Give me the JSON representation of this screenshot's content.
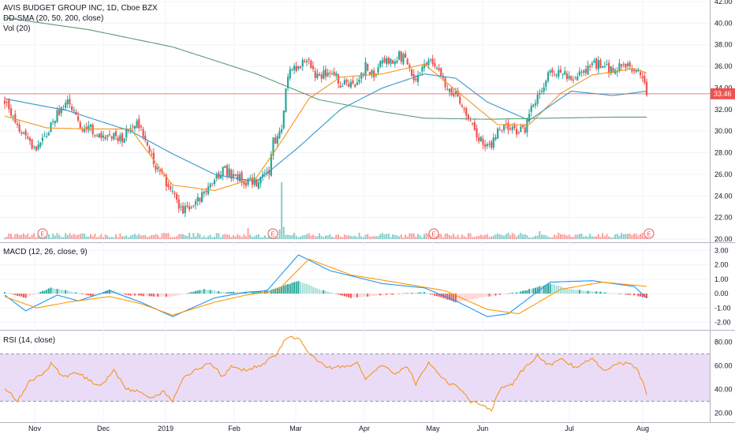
{
  "header": {
    "title": "AVIS BUDGET GROUP INC, 1D, Cboe BZX",
    "sma_label": "DD-SMA (20, 50, 200, close)",
    "vol_label": "Vol (20)",
    "macd_label": "MACD (12, 26, close, 9)",
    "rsi_label": "RSI (14, close)",
    "last_price": "33.46"
  },
  "colors": {
    "up": "#26a69a",
    "down": "#ef5350",
    "sma20": "#f7931e",
    "sma50": "#3399cc",
    "sma200": "#5b9a7a",
    "macd": "#2196f3",
    "signal": "#ff9800",
    "rsi": "#f7931e",
    "rsi_band": "#eadcf7",
    "price_line": "#ef5350"
  },
  "chart_data": [
    {
      "type": "candlestick",
      "title": "AVIS BUDGET GROUP INC, 1D, Cboe BZX",
      "x_ticks": [
        "Nov",
        "Dec",
        "2019",
        "Feb",
        "Mar",
        "Apr",
        "May",
        "Jun",
        "Jul",
        "Aug"
      ],
      "y_ticks": [
        "20.00",
        "22.00",
        "24.00",
        "26.00",
        "28.00",
        "30.00",
        "32.00",
        "34.00",
        "36.00",
        "38.00",
        "40.00",
        "42.00"
      ],
      "ylim": [
        20,
        42
      ],
      "last_price": 33.46,
      "earnings_markers": [
        "E",
        "E",
        "E",
        "E"
      ],
      "closes": [
        [
          0,
          32.6
        ],
        [
          5,
          31.0
        ],
        [
          10,
          29.3
        ],
        [
          15,
          28.2
        ],
        [
          20,
          29.6
        ],
        [
          25,
          31.6
        ],
        [
          30,
          32.6
        ],
        [
          33,
          32.0
        ],
        [
          36,
          30.4
        ],
        [
          40,
          30.5
        ],
        [
          44,
          29.5
        ],
        [
          48,
          29.2
        ],
        [
          52,
          29.8
        ],
        [
          56,
          29.0
        ],
        [
          60,
          30.6
        ],
        [
          64,
          30.7
        ],
        [
          68,
          28.8
        ],
        [
          72,
          26.8
        ],
        [
          76,
          25.6
        ],
        [
          80,
          24.2
        ],
        [
          84,
          22.6
        ],
        [
          88,
          22.7
        ],
        [
          92,
          23.6
        ],
        [
          96,
          24.5
        ],
        [
          100,
          25.4
        ],
        [
          104,
          26.5
        ],
        [
          108,
          26.0
        ],
        [
          112,
          25.8
        ],
        [
          116,
          25.2
        ],
        [
          120,
          25.3
        ],
        [
          124,
          26.0
        ],
        [
          126,
          26.3
        ],
        [
          128,
          29.0
        ],
        [
          132,
          29.8
        ],
        [
          134,
          34.0
        ],
        [
          136,
          35.8
        ],
        [
          140,
          36.0
        ],
        [
          144,
          36.7
        ],
        [
          148,
          35.0
        ],
        [
          152,
          35.3
        ],
        [
          156,
          35.7
        ],
        [
          160,
          34.4
        ],
        [
          164,
          34.3
        ],
        [
          168,
          34.6
        ],
        [
          172,
          36.0
        ],
        [
          176,
          35.2
        ],
        [
          180,
          36.3
        ],
        [
          184,
          36.5
        ],
        [
          188,
          37.0
        ],
        [
          192,
          36.5
        ],
        [
          196,
          34.3
        ],
        [
          200,
          36.6
        ],
        [
          204,
          36.3
        ],
        [
          208,
          34.9
        ],
        [
          212,
          33.6
        ],
        [
          216,
          33.1
        ],
        [
          220,
          31.7
        ],
        [
          224,
          30.0
        ],
        [
          228,
          29.0
        ],
        [
          232,
          28.8
        ],
        [
          236,
          30.2
        ],
        [
          240,
          30.3
        ],
        [
          244,
          30.0
        ],
        [
          248,
          30.3
        ],
        [
          252,
          32.4
        ],
        [
          256,
          34.0
        ],
        [
          260,
          35.4
        ],
        [
          264,
          35.3
        ],
        [
          268,
          35.2
        ],
        [
          272,
          35.0
        ],
        [
          276,
          35.3
        ],
        [
          280,
          36.3
        ],
        [
          284,
          36.2
        ],
        [
          288,
          35.8
        ],
        [
          292,
          35.8
        ],
        [
          296,
          36.2
        ],
        [
          300,
          35.6
        ],
        [
          304,
          35.0
        ],
        [
          306,
          33.46
        ]
      ],
      "series": [
        {
          "name": "SMA 20",
          "values": [
            [
              0,
              31.4
            ],
            [
              20,
              30.3
            ],
            [
              40,
              30.2
            ],
            [
              60,
              30.2
            ],
            [
              80,
              25.0
            ],
            [
              100,
              24.5
            ],
            [
              120,
              25.7
            ],
            [
              130,
              28.5
            ],
            [
              145,
              33.0
            ],
            [
              160,
              35.0
            ],
            [
              180,
              35.3
            ],
            [
              200,
              36.2
            ],
            [
              220,
              33.0
            ],
            [
              235,
              30.6
            ],
            [
              250,
              30.6
            ],
            [
              265,
              33.5
            ],
            [
              280,
              35.2
            ],
            [
              300,
              35.8
            ],
            [
              306,
              35.4
            ]
          ]
        },
        {
          "name": "SMA 50",
          "values": [
            [
              0,
              33.0
            ],
            [
              30,
              31.9
            ],
            [
              60,
              30.0
            ],
            [
              80,
              27.9
            ],
            [
              100,
              26.0
            ],
            [
              120,
              25.3
            ],
            [
              140,
              28.5
            ],
            [
              160,
              32.0
            ],
            [
              180,
              34.0
            ],
            [
              200,
              35.3
            ],
            [
              215,
              34.9
            ],
            [
              230,
              32.7
            ],
            [
              250,
              31.0
            ],
            [
              270,
              33.7
            ],
            [
              290,
              33.3
            ],
            [
              306,
              33.7
            ]
          ]
        },
        {
          "name": "SMA 200",
          "values": [
            [
              0,
              40.5
            ],
            [
              40,
              39.4
            ],
            [
              80,
              37.8
            ],
            [
              120,
              35.3
            ],
            [
              150,
              32.9
            ],
            [
              180,
              31.8
            ],
            [
              200,
              31.2
            ],
            [
              230,
              31.1
            ],
            [
              260,
              31.2
            ],
            [
              290,
              31.3
            ],
            [
              306,
              31.3
            ]
          ]
        }
      ]
    },
    {
      "type": "macd",
      "title": "MACD (12, 26, close, 9)",
      "y_ticks": [
        "3.00",
        "2.00",
        "1.00",
        "0.00",
        "-1.00",
        "-2.00"
      ],
      "ylim": [
        -2.3,
        3.3
      ],
      "series": [
        {
          "name": "MACD",
          "values": [
            [
              0,
              -0.1
            ],
            [
              10,
              -1.2
            ],
            [
              25,
              -0.1
            ],
            [
              35,
              -0.5
            ],
            [
              50,
              0.2
            ],
            [
              65,
              -0.6
            ],
            [
              80,
              -1.6
            ],
            [
              100,
              -0.3
            ],
            [
              115,
              0.1
            ],
            [
              125,
              0.2
            ],
            [
              140,
              2.7
            ],
            [
              155,
              1.6
            ],
            [
              180,
              0.7
            ],
            [
              200,
              0.4
            ],
            [
              215,
              -0.5
            ],
            [
              230,
              -1.6
            ],
            [
              240,
              -1.4
            ],
            [
              260,
              0.8
            ],
            [
              280,
              0.9
            ],
            [
              300,
              0.5
            ],
            [
              306,
              -0.3
            ]
          ]
        },
        {
          "name": "Signal",
          "values": [
            [
              0,
              -0.2
            ],
            [
              15,
              -1.0
            ],
            [
              30,
              -0.6
            ],
            [
              50,
              -0.2
            ],
            [
              65,
              -0.7
            ],
            [
              80,
              -1.5
            ],
            [
              100,
              -0.6
            ],
            [
              115,
              -0.1
            ],
            [
              130,
              0.2
            ],
            [
              145,
              2.4
            ],
            [
              165,
              1.3
            ],
            [
              190,
              0.7
            ],
            [
              210,
              0.2
            ],
            [
              230,
              -1.1
            ],
            [
              245,
              -1.4
            ],
            [
              265,
              0.3
            ],
            [
              285,
              0.8
            ],
            [
              306,
              0.5
            ]
          ]
        },
        {
          "name": "Histogram",
          "values": [
            [
              0,
              0.1
            ],
            [
              10,
              -0.3
            ],
            [
              22,
              0.4
            ],
            [
              30,
              0.2
            ],
            [
              42,
              -0.2
            ],
            [
              50,
              0.3
            ],
            [
              58,
              -0.1
            ],
            [
              70,
              -0.2
            ],
            [
              80,
              -0.2
            ],
            [
              95,
              0.3
            ],
            [
              105,
              0.1
            ],
            [
              118,
              0.1
            ],
            [
              128,
              0.3
            ],
            [
              140,
              0.9
            ],
            [
              150,
              0.3
            ],
            [
              165,
              -0.3
            ],
            [
              180,
              -0.1
            ],
            [
              200,
              0.1
            ],
            [
              215,
              -0.6
            ],
            [
              230,
              -0.2
            ],
            [
              245,
              0.1
            ],
            [
              260,
              0.7
            ],
            [
              270,
              0.3
            ],
            [
              285,
              0.1
            ],
            [
              300,
              -0.1
            ],
            [
              306,
              -0.3
            ]
          ]
        }
      ]
    },
    {
      "type": "rsi",
      "title": "RSI (14, close)",
      "y_ticks": [
        "80.00",
        "60.00",
        "40.00",
        "20.00"
      ],
      "ylim": [
        15,
        87
      ],
      "band": [
        30,
        70
      ],
      "series": [
        {
          "name": "RSI",
          "values": [
            [
              0,
              42
            ],
            [
              6,
              30
            ],
            [
              12,
              48
            ],
            [
              18,
              52
            ],
            [
              22,
              62
            ],
            [
              28,
              50
            ],
            [
              34,
              55
            ],
            [
              40,
              48
            ],
            [
              46,
              43
            ],
            [
              52,
              57
            ],
            [
              58,
              40
            ],
            [
              64,
              38
            ],
            [
              70,
              33
            ],
            [
              76,
              38
            ],
            [
              80,
              30
            ],
            [
              86,
              52
            ],
            [
              92,
              57
            ],
            [
              98,
              63
            ],
            [
              104,
              50
            ],
            [
              108,
              60
            ],
            [
              112,
              56
            ],
            [
              120,
              59
            ],
            [
              126,
              65
            ],
            [
              130,
              70
            ],
            [
              134,
              84
            ],
            [
              140,
              83
            ],
            [
              144,
              74
            ],
            [
              150,
              62
            ],
            [
              156,
              58
            ],
            [
              162,
              60
            ],
            [
              168,
              62
            ],
            [
              172,
              48
            ],
            [
              180,
              61
            ],
            [
              186,
              52
            ],
            [
              192,
              60
            ],
            [
              196,
              44
            ],
            [
              202,
              62
            ],
            [
              208,
              50
            ],
            [
              212,
              45
            ],
            [
              218,
              40
            ],
            [
              222,
              30
            ],
            [
              228,
              26
            ],
            [
              232,
              23
            ],
            [
              236,
              40
            ],
            [
              242,
              45
            ],
            [
              248,
              59
            ],
            [
              254,
              68
            ],
            [
              260,
              60
            ],
            [
              266,
              66
            ],
            [
              272,
              58
            ],
            [
              280,
              66
            ],
            [
              286,
              56
            ],
            [
              292,
              62
            ],
            [
              298,
              62
            ],
            [
              302,
              56
            ],
            [
              306,
              37
            ]
          ]
        }
      ]
    }
  ]
}
